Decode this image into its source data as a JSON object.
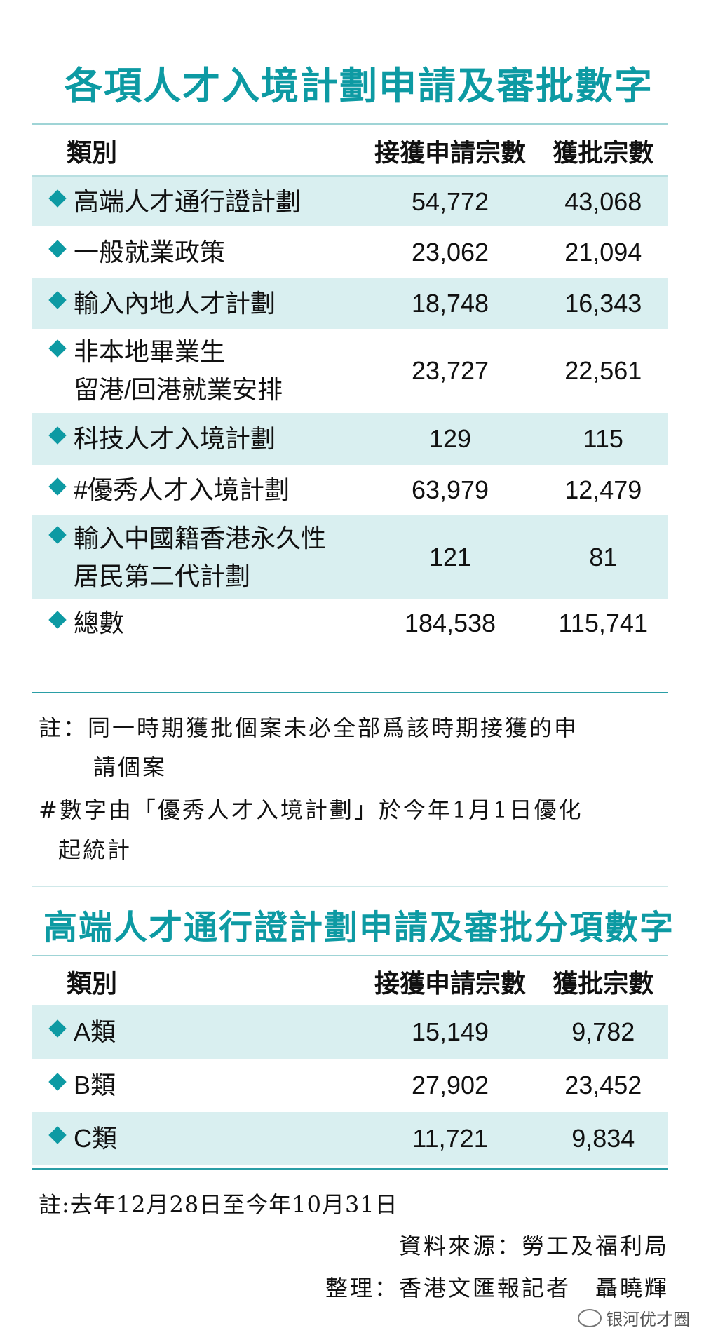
{
  "table1": {
    "title": "各項人才入境計劃申請及審批數字",
    "headers": [
      "類別",
      "接獲申請宗數",
      "獲批宗數"
    ],
    "rows": [
      {
        "category": [
          "高端人才通行證計劃"
        ],
        "applications": "54,772",
        "approved": "43,068"
      },
      {
        "category": [
          "一般就業政策"
        ],
        "applications": "23,062",
        "approved": "21,094"
      },
      {
        "category": [
          "輸入內地人才計劃"
        ],
        "applications": "18,748",
        "approved": "16,343"
      },
      {
        "category": [
          "非本地畢業生",
          "留港/回港就業安排"
        ],
        "applications": "23,727",
        "approved": "22,561"
      },
      {
        "category": [
          "科技人才入境計劃"
        ],
        "applications": "129",
        "approved": "115"
      },
      {
        "category": [
          "#優秀人才入境計劃"
        ],
        "applications": "63,979",
        "approved": "12,479"
      },
      {
        "category": [
          "輸入中國籍香港永久性",
          "居民第二代計劃"
        ],
        "applications": "121",
        "approved": "81"
      },
      {
        "category": [
          "總數"
        ],
        "applications": "184,538",
        "approved": "115,741"
      }
    ],
    "notes": [
      "註：同一時期獲批個案未必全部爲該時期接獲的申",
      "請個案",
      "#數字由「優秀人才入境計劃」於今年1月1日優化",
      "起統計"
    ]
  },
  "table2": {
    "title": "高端人才通行證計劃申請及審批分項數字",
    "headers": [
      "類別",
      "接獲申請宗數",
      "獲批宗數"
    ],
    "rows": [
      {
        "category": [
          "A類"
        ],
        "applications": "15,149",
        "approved": "9,782"
      },
      {
        "category": [
          "B類"
        ],
        "applications": "27,902",
        "approved": "23,452"
      },
      {
        "category": [
          "C類"
        ],
        "applications": "11,721",
        "approved": "9,834"
      }
    ],
    "notes": [
      "註:去年12月28日至今年10月31日"
    ]
  },
  "footer": {
    "source": "資料來源：勞工及福利局",
    "compiled": "整理：香港文匯報記者　聶曉輝",
    "watermark": "银河优才圈"
  },
  "colors": {
    "accent": "#0d9aa3",
    "row_shade": "#d9eff0"
  }
}
